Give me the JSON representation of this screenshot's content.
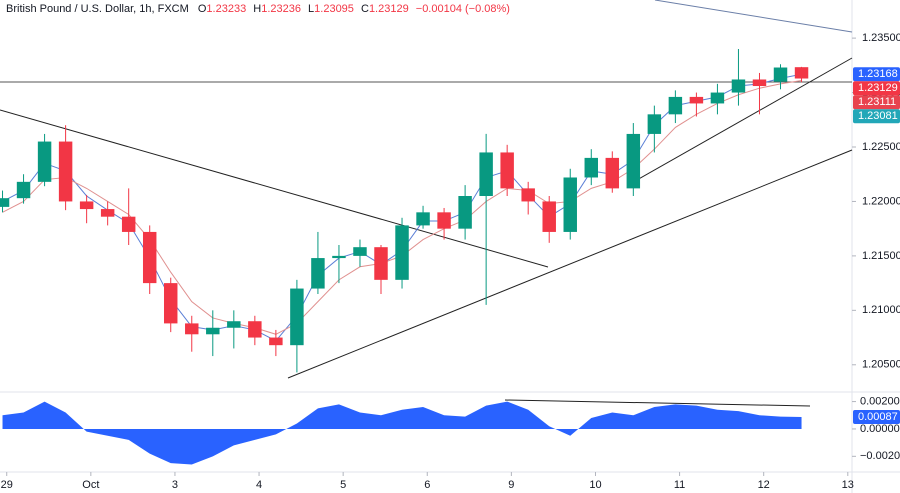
{
  "chart_data": {
    "type": "candlestick",
    "title": "British Pound / U.S. Dollar, 1h, FXCM",
    "ohlc_prefixes": [
      "O",
      "H",
      "L",
      "C"
    ],
    "change": "−0.00104 (−0.08%)",
    "x": [
      -0.05,
      0.2,
      0.45,
      0.7,
      0.95,
      1.2,
      1.45,
      1.7,
      1.95,
      2.2,
      2.45,
      2.7,
      2.95,
      3.2,
      3.45,
      3.7,
      3.95,
      4.2,
      4.45,
      4.7,
      4.95,
      5.2,
      5.45,
      5.7,
      5.95,
      6.2,
      6.45,
      6.7,
      6.95,
      7.2,
      7.45,
      7.7,
      7.95,
      8.2,
      8.45,
      8.7,
      8.95,
      9.2,
      9.45
    ],
    "open": [
      1.2195,
      1.2203,
      1.2218,
      1.2255,
      1.22,
      1.2193,
      1.2186,
      1.2172,
      1.2125,
      1.2088,
      1.2078,
      1.2084,
      1.209,
      1.2075,
      1.2068,
      1.212,
      1.2148,
      1.215,
      1.2158,
      1.2128,
      1.2178,
      1.219,
      1.2175,
      1.2205,
      1.2245,
      1.2212,
      1.22,
      1.2172,
      1.2222,
      1.224,
      1.2212,
      1.2262,
      1.228,
      1.2296,
      1.229,
      1.23,
      1.2312,
      1.231,
      1.23233
    ],
    "high": [
      1.221,
      1.2225,
      1.2262,
      1.227,
      1.2206,
      1.22,
      1.2212,
      1.2178,
      1.213,
      1.2095,
      1.21,
      1.21,
      1.2095,
      1.2082,
      1.2128,
      1.2172,
      1.216,
      1.2165,
      1.216,
      1.2185,
      1.2196,
      1.2194,
      1.2215,
      1.2262,
      1.2252,
      1.2218,
      1.2205,
      1.223,
      1.2248,
      1.2246,
      1.2272,
      1.2288,
      1.2302,
      1.23,
      1.2308,
      1.234,
      1.2318,
      1.2326,
      1.23236
    ],
    "low": [
      1.219,
      1.2198,
      1.2214,
      1.2192,
      1.218,
      1.2178,
      1.216,
      1.2115,
      1.208,
      1.2062,
      1.2058,
      1.2065,
      1.2068,
      1.2058,
      1.2043,
      1.2115,
      1.2125,
      1.214,
      1.2115,
      1.212,
      1.2175,
      1.2165,
      1.2165,
      1.2105,
      1.2205,
      1.2188,
      1.2162,
      1.2165,
      1.2215,
      1.2208,
      1.2205,
      1.2245,
      1.2272,
      1.2278,
      1.228,
      1.2288,
      1.228,
      1.2303,
      1.23095
    ],
    "close": [
      1.2203,
      1.2218,
      1.2255,
      1.22,
      1.2193,
      1.2186,
      1.2172,
      1.2125,
      1.2088,
      1.2078,
      1.2084,
      1.209,
      1.2075,
      1.2068,
      1.212,
      1.2148,
      1.215,
      1.2158,
      1.2128,
      1.2178,
      1.219,
      1.2175,
      1.2205,
      1.2245,
      1.2212,
      1.22,
      1.2172,
      1.2222,
      1.224,
      1.2212,
      1.2262,
      1.228,
      1.2296,
      1.229,
      1.23,
      1.2312,
      1.2306,
      1.2323,
      1.23129
    ],
    "up_color": "#089981",
    "down_color": "#f23645",
    "ma_series": [
      {
        "color": "#5b7fd6",
        "values": [
          1.22,
          1.221,
          1.2235,
          1.2228,
          1.2205,
          1.2192,
          1.218,
          1.2148,
          1.211,
          1.2085,
          1.2082,
          1.2086,
          1.2082,
          1.2072,
          1.2095,
          1.2132,
          1.2148,
          1.2154,
          1.2142,
          1.2155,
          1.2182,
          1.2182,
          1.219,
          1.2222,
          1.2228,
          1.2206,
          1.2186,
          1.2198,
          1.2228,
          1.2225,
          1.2238,
          1.227,
          1.2288,
          1.2292,
          1.2296,
          1.2306,
          1.2308,
          1.2313,
          1.23168
        ]
      },
      {
        "color": "#e0908f",
        "values": [
          1.219,
          1.22,
          1.222,
          1.2222,
          1.2212,
          1.22,
          1.2188,
          1.2165,
          1.2135,
          1.2108,
          1.2093,
          1.2088,
          1.2084,
          1.2078,
          1.2088,
          1.2108,
          1.2128,
          1.214,
          1.2143,
          1.215,
          1.2165,
          1.2175,
          1.2183,
          1.22,
          1.2212,
          1.221,
          1.2198,
          1.22,
          1.2212,
          1.2218,
          1.223,
          1.2248,
          1.2268,
          1.228,
          1.229,
          1.2298,
          1.2304,
          1.2308,
          1.23111
        ]
      }
    ],
    "xlim": [
      -0.08,
      10.05
    ],
    "xticks": [
      {
        "value": 0,
        "label": "29"
      },
      {
        "value": 1,
        "label": "Oct"
      },
      {
        "value": 2,
        "label": "3"
      },
      {
        "value": 3,
        "label": "4"
      },
      {
        "value": 4,
        "label": "5"
      },
      {
        "value": 5,
        "label": "6"
      },
      {
        "value": 6,
        "label": "9"
      },
      {
        "value": 7,
        "label": "10"
      },
      {
        "value": 8,
        "label": "11"
      },
      {
        "value": 9,
        "label": "12"
      },
      {
        "value": 10,
        "label": "13"
      }
    ],
    "ylim": [
      1.2025,
      1.2385
    ],
    "yticks": [
      {
        "value": 1.205,
        "label": "1.20500"
      },
      {
        "value": 1.21,
        "label": "1.21000"
      },
      {
        "value": 1.215,
        "label": "1.21500"
      },
      {
        "value": 1.22,
        "label": "1.22000"
      },
      {
        "value": 1.225,
        "label": "1.22500"
      },
      {
        "value": 1.23,
        "label": "1.23000"
      },
      {
        "value": 1.235,
        "label": "1.23500"
      }
    ],
    "grid": false,
    "price_tags": [
      {
        "value": 1.23168,
        "color": "#2962ff"
      },
      {
        "value": 1.23129,
        "color": "#f23645"
      },
      {
        "value": 1.23111,
        "color": "#e8434e"
      },
      {
        "value": 1.23081,
        "color": "#22a7b8"
      }
    ],
    "oscillator": {
      "color": "#2962ff",
      "values": [
        0.001,
        0.0012,
        0.002,
        0.0012,
        -0.0002,
        -0.0005,
        -0.0008,
        -0.0018,
        -0.0025,
        -0.0026,
        -0.002,
        -0.0012,
        -0.0008,
        -0.0004,
        0.0004,
        0.0015,
        0.0018,
        0.0012,
        0.001,
        0.0014,
        0.0016,
        0.001,
        0.0009,
        0.0017,
        0.002,
        0.0014,
        0.0002,
        -0.0005,
        0.0008,
        0.0012,
        0.001,
        0.0016,
        0.0018,
        0.0017,
        0.0014,
        0.0013,
        0.001,
        0.0009,
        0.00087
      ],
      "ylim": [
        -0.003,
        0.0027
      ],
      "yticks": [
        {
          "value": 0.002,
          "label": "0.00200"
        },
        {
          "value": 0,
          "label": "0.00000"
        },
        {
          "value": -0.002,
          "label": "−0.00200"
        }
      ]
    }
  }
}
